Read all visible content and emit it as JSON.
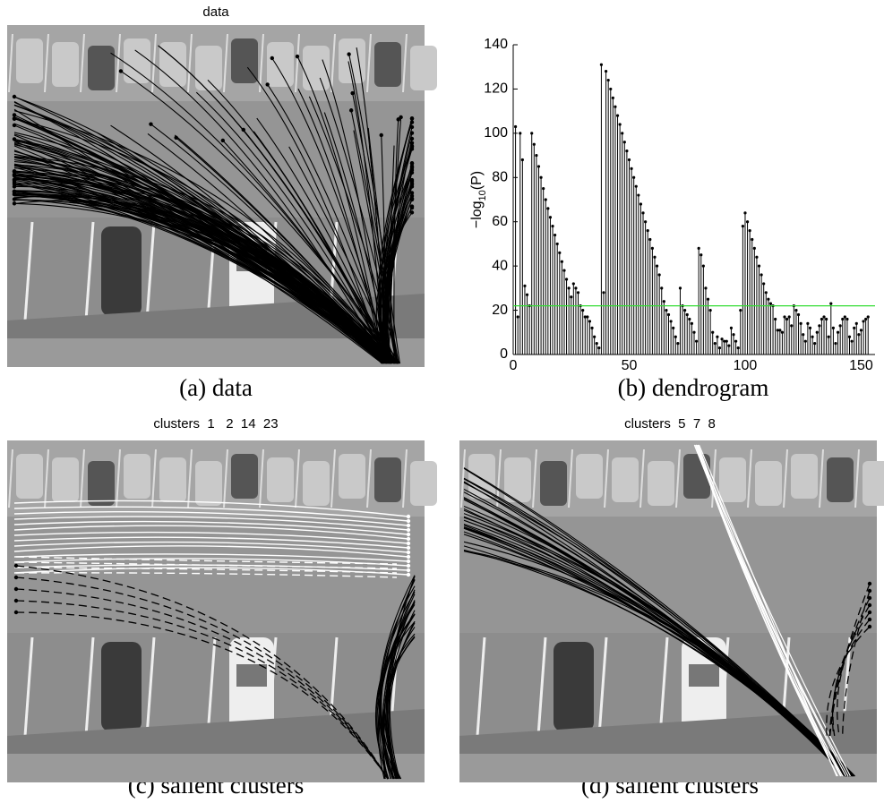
{
  "panels": [
    {
      "title": "data",
      "caption": "(a) data"
    },
    {
      "title": "clusters  1   2  14  23",
      "caption": "(c) salient clusters"
    },
    {
      "title": "clusters  5  7  8",
      "caption": "(d) salient clusters"
    }
  ],
  "chart_data": {
    "type": "stem",
    "caption": "(b) dendrogram",
    "ylabel": [
      "−log",
      "10",
      "(P)"
    ],
    "color": "#000000",
    "threshold": 22,
    "threshold_color": "#33dd33",
    "xlim": [
      0,
      156
    ],
    "ylim": [
      0,
      140
    ],
    "xticks": [
      0,
      50,
      100,
      150
    ],
    "yticks": [
      0,
      20,
      40,
      60,
      80,
      100,
      120,
      140
    ],
    "x": [
      1,
      2,
      3,
      4,
      5,
      6,
      7,
      8,
      9,
      10,
      11,
      12,
      13,
      14,
      15,
      16,
      17,
      18,
      19,
      20,
      21,
      22,
      23,
      24,
      25,
      26,
      27,
      28,
      29,
      30,
      31,
      32,
      33,
      34,
      35,
      36,
      37,
      38,
      39,
      40,
      41,
      42,
      43,
      44,
      45,
      46,
      47,
      48,
      49,
      50,
      51,
      52,
      53,
      54,
      55,
      56,
      57,
      58,
      59,
      60,
      61,
      62,
      63,
      64,
      65,
      66,
      67,
      68,
      69,
      70,
      71,
      72,
      73,
      74,
      75,
      76,
      77,
      78,
      79,
      80,
      81,
      82,
      83,
      84,
      85,
      86,
      87,
      88,
      89,
      90,
      91,
      92,
      93,
      94,
      95,
      96,
      97,
      98,
      99,
      100,
      101,
      102,
      103,
      104,
      105,
      106,
      107,
      108,
      109,
      110,
      111,
      112,
      113,
      114,
      115,
      116,
      117,
      118,
      119,
      120,
      121,
      122,
      123,
      124,
      125,
      126,
      127,
      128,
      129,
      130,
      131,
      132,
      133,
      134,
      135,
      136,
      137,
      138,
      139,
      140,
      141,
      142,
      143,
      144,
      145,
      146,
      147,
      148,
      149,
      150,
      151,
      152,
      153
    ],
    "values": [
      103,
      17,
      100,
      88,
      31,
      27,
      22,
      100,
      95,
      90,
      85,
      80,
      75,
      70,
      66,
      62,
      58,
      54,
      50,
      46,
      42,
      38,
      34,
      30,
      26,
      32,
      30,
      28,
      22,
      20,
      17,
      17,
      15,
      12,
      8,
      5,
      3,
      131,
      28,
      128,
      124,
      120,
      116,
      112,
      108,
      104,
      100,
      96,
      92,
      88,
      84,
      80,
      76,
      72,
      68,
      64,
      60,
      56,
      52,
      48,
      44,
      40,
      36,
      30,
      24,
      20,
      18,
      15,
      12,
      8,
      5,
      30,
      22,
      20,
      18,
      16,
      14,
      10,
      6,
      48,
      45,
      40,
      30,
      25,
      20,
      10,
      5,
      8,
      3,
      7,
      6,
      6,
      4,
      12,
      9,
      6,
      3,
      20,
      58,
      64,
      60,
      56,
      52,
      48,
      44,
      40,
      36,
      32,
      28,
      25,
      23,
      22,
      16,
      11,
      11,
      10,
      17,
      16,
      17,
      13,
      22,
      20,
      18,
      14,
      9,
      6,
      14,
      12,
      8,
      5,
      10,
      13,
      16,
      17,
      16,
      8,
      23,
      12,
      5,
      10,
      13,
      16,
      17,
      16,
      8,
      6,
      12,
      14,
      9,
      11,
      15,
      16,
      17
    ]
  }
}
